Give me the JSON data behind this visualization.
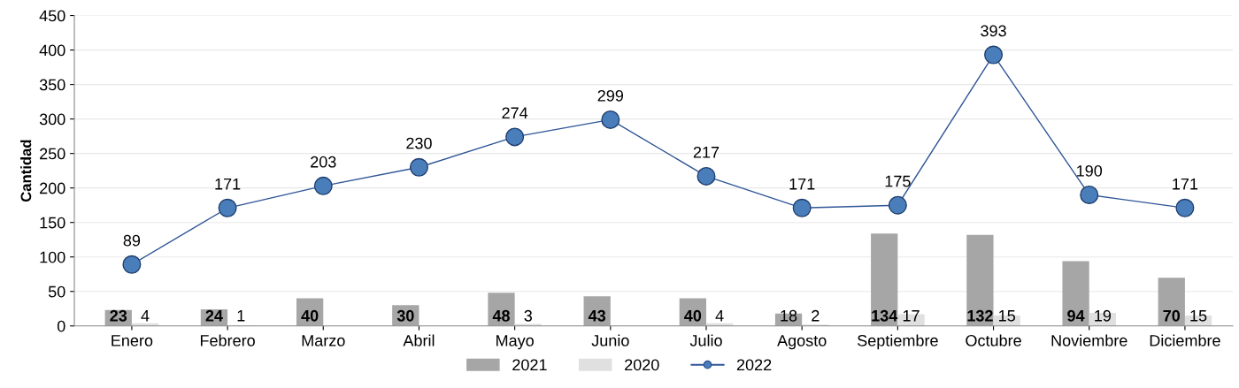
{
  "chart_data": {
    "type": "bar",
    "ylabel": "Cantidad",
    "categories": [
      "Enero",
      "Febrero",
      "Marzo",
      "Abril",
      "Mayo",
      "Junio",
      "Julio",
      "Agosto",
      "Septiembre",
      "Octubre",
      "Noviembre",
      "Diciembre"
    ],
    "series": [
      {
        "name": "2021",
        "color": "#a6a6a6",
        "values": [
          23,
          24,
          40,
          30,
          48,
          43,
          40,
          18,
          134,
          132,
          94,
          70
        ]
      },
      {
        "name": "2020",
        "color": "#e0e0e0",
        "values": [
          4,
          1,
          null,
          null,
          3,
          null,
          4,
          2,
          17,
          15,
          19,
          15
        ]
      },
      {
        "name": "2022",
        "type": "line",
        "color": "#2f5597",
        "values": [
          89,
          171,
          203,
          230,
          274,
          299,
          217,
          171,
          175,
          393,
          190,
          171
        ]
      }
    ],
    "ylim": [
      0,
      450
    ],
    "yticks": [
      0,
      50,
      100,
      150,
      200,
      250,
      300,
      350,
      400,
      450
    ],
    "grid": "y",
    "legend": "bottom",
    "marker": "circle",
    "line_style": "solid",
    "data_labels": true
  }
}
